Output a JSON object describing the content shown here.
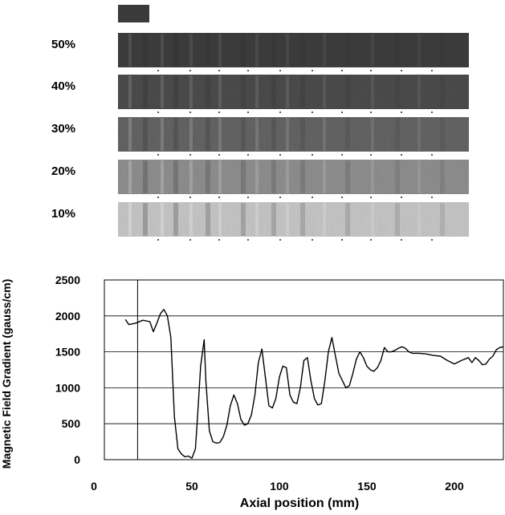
{
  "strips": {
    "labels": [
      "50%",
      "40%",
      "30%",
      "20%",
      "10%"
    ],
    "base_grays": [
      "#3c3c3c",
      "#4b4b4b",
      "#636363",
      "#8d8d8d",
      "#c4c4c4"
    ],
    "swatch_color": "#3a3a3a"
  },
  "chart_data": {
    "type": "line",
    "xlabel": "Axial position (mm)",
    "ylabel": "Magnetic Field Gradient (gauss/cm)",
    "xlim": [
      0,
      228
    ],
    "ylim": [
      0,
      2500
    ],
    "xticks": [
      0,
      50,
      100,
      150,
      200
    ],
    "yticks": [
      0,
      500,
      1000,
      1500,
      2000,
      2500
    ],
    "grid": "horizontal",
    "line_color": "#000000",
    "series": [
      {
        "x": [
          12,
          14,
          18,
          22,
          26,
          28,
          30,
          32,
          34,
          36,
          38,
          40,
          42,
          44,
          46,
          48,
          50,
          52,
          53,
          55,
          57,
          58,
          60,
          62,
          64,
          66,
          68,
          70,
          72,
          74,
          76,
          78,
          80,
          82,
          84,
          86,
          88,
          90,
          92,
          94,
          96,
          98,
          100,
          102,
          104,
          106,
          108,
          110,
          112,
          114,
          116,
          118,
          120,
          122,
          124,
          126,
          128,
          130,
          132,
          134,
          136,
          138,
          140,
          142,
          144,
          146,
          148,
          150,
          152,
          154,
          156,
          158,
          160,
          162,
          164,
          166,
          168,
          170,
          172,
          174,
          176,
          178,
          180,
          184,
          188,
          192,
          196,
          200,
          204,
          208,
          210,
          212,
          214,
          216,
          218,
          220,
          222,
          224,
          226,
          228
        ],
        "y": [
          1950,
          1880,
          1900,
          1940,
          1920,
          1780,
          1900,
          2030,
          2090,
          2000,
          1700,
          600,
          150,
          80,
          40,
          50,
          20,
          150,
          500,
          1300,
          1670,
          1100,
          400,
          250,
          230,
          240,
          320,
          480,
          750,
          900,
          780,
          560,
          480,
          500,
          620,
          900,
          1350,
          1540,
          1150,
          750,
          720,
          850,
          1150,
          1300,
          1280,
          900,
          800,
          780,
          1000,
          1380,
          1420,
          1100,
          850,
          760,
          780,
          1100,
          1500,
          1700,
          1450,
          1200,
          1100,
          1000,
          1030,
          1200,
          1400,
          1500,
          1420,
          1300,
          1250,
          1230,
          1280,
          1380,
          1560,
          1500,
          1500,
          1520,
          1550,
          1570,
          1550,
          1500,
          1480,
          1480,
          1480,
          1470,
          1450,
          1440,
          1380,
          1330,
          1380,
          1420,
          1350,
          1420,
          1380,
          1320,
          1330,
          1400,
          1440,
          1530,
          1560,
          1570
        ]
      }
    ]
  }
}
